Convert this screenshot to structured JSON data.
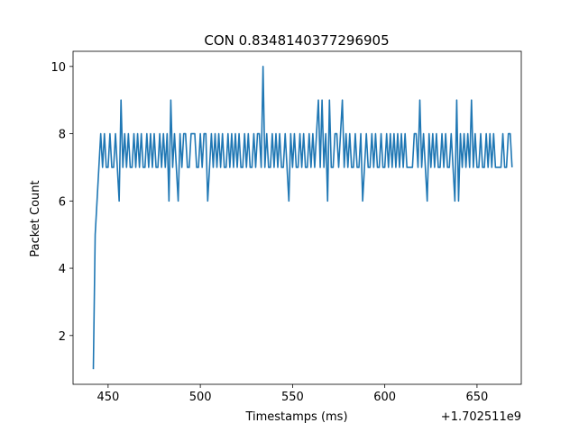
{
  "chart_data": {
    "type": "line",
    "title": "CON 0.8348140377296905",
    "xlabel": "Timestamps (ms)",
    "ylabel": "Packet Count",
    "x_offset_label": "+1.702511e9",
    "xlim": [
      431,
      674
    ],
    "ylim": [
      0.55,
      10.45
    ],
    "xticks": [
      450,
      500,
      550,
      600,
      650
    ],
    "xtick_labels": [
      "450",
      "500",
      "550",
      "600",
      "650"
    ],
    "yticks": [
      2,
      4,
      6,
      8,
      10
    ],
    "ytick_labels": [
      "2",
      "4",
      "6",
      "8",
      "10"
    ],
    "grid": false,
    "series": [
      {
        "color": "#1f77b4",
        "x_start": 442,
        "x_step": 1,
        "values": [
          1,
          5,
          6,
          7,
          8,
          7,
          8,
          7,
          7,
          8,
          7,
          7,
          8,
          7,
          6,
          9,
          7,
          8,
          7,
          8,
          7,
          7,
          8,
          7,
          8,
          7,
          8,
          7,
          7,
          8,
          7,
          8,
          7,
          8,
          7,
          7,
          8,
          7,
          8,
          7,
          8,
          6,
          9,
          7,
          8,
          7,
          6,
          8,
          7,
          8,
          8,
          7,
          7,
          8,
          8,
          8,
          7,
          7,
          8,
          7,
          8,
          8,
          6,
          7,
          8,
          7,
          8,
          7,
          8,
          7,
          8,
          7,
          7,
          8,
          7,
          8,
          7,
          8,
          7,
          8,
          7,
          7,
          8,
          7,
          8,
          7,
          7,
          8,
          7,
          8,
          8,
          7,
          10,
          7,
          8,
          7,
          7,
          8,
          7,
          8,
          7,
          8,
          7,
          7,
          8,
          7,
          6,
          8,
          7,
          8,
          7,
          7,
          8,
          7,
          8,
          7,
          7,
          8,
          7,
          8,
          7,
          8,
          9,
          7,
          9,
          7,
          8,
          6,
          9,
          7,
          7,
          8,
          8,
          7,
          8,
          9,
          7,
          8,
          7,
          8,
          7,
          7,
          8,
          7,
          7,
          8,
          6,
          7,
          8,
          7,
          7,
          8,
          7,
          8,
          7,
          7,
          8,
          7,
          7,
          8,
          7,
          8,
          7,
          8,
          7,
          8,
          7,
          8,
          7,
          8,
          7,
          7,
          7,
          7,
          8,
          8,
          7,
          9,
          7,
          8,
          7,
          6,
          8,
          7,
          8,
          7,
          8,
          7,
          7,
          8,
          7,
          8,
          7,
          7,
          8,
          7,
          6,
          9,
          6,
          8,
          7,
          8,
          7,
          8,
          7,
          9,
          7,
          8,
          7,
          7,
          8,
          7,
          7,
          8,
          7,
          8,
          7,
          8,
          7,
          7,
          7,
          7,
          8,
          7,
          7,
          8,
          8,
          7
        ]
      }
    ]
  }
}
